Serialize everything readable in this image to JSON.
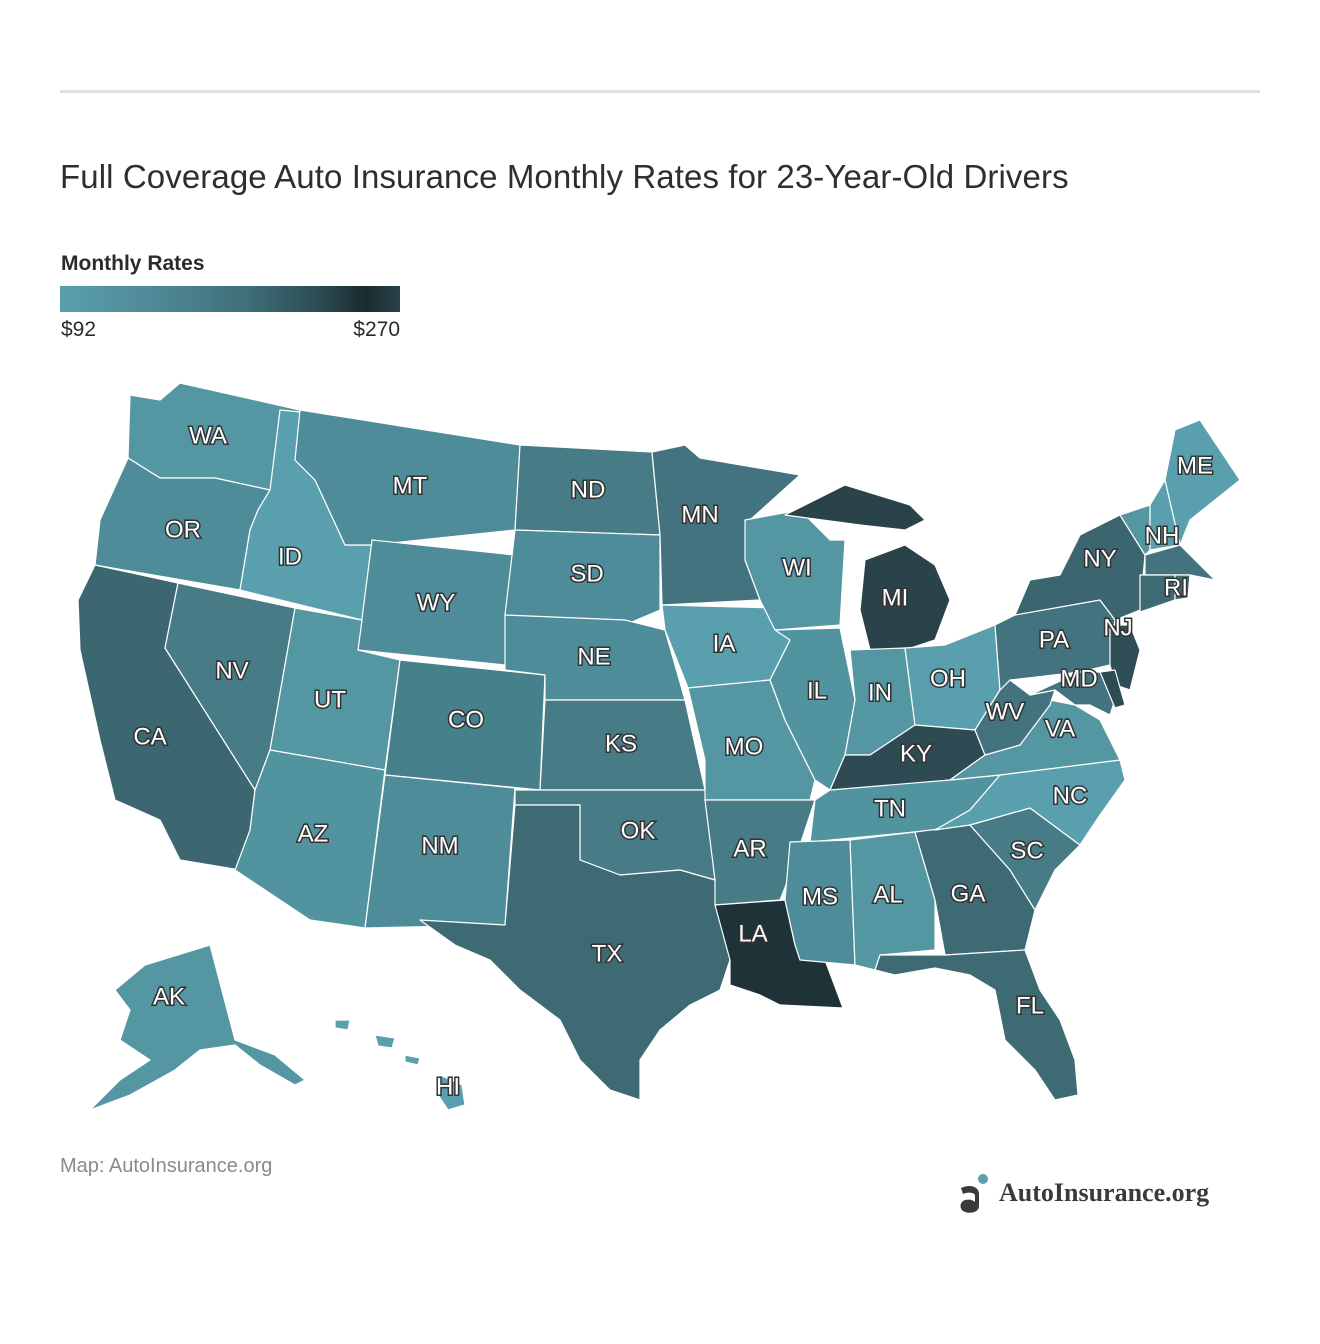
{
  "title": "Full Coverage Auto Insurance Monthly Rates for 23-Year-Old Drivers",
  "legend": {
    "title": "Monthly Rates",
    "min_label": "$92",
    "max_label": "$270",
    "colors": [
      "#5a9fad",
      "#4e8794",
      "#3f6f79",
      "#2d4d55",
      "#1b2a2f",
      "#27414a"
    ]
  },
  "source": "Map: AutoInsurance.org",
  "brand": {
    "name": "AutoInsurance.org"
  },
  "chart_data": {
    "type": "choropleth",
    "scale": {
      "min": 92,
      "max": 270,
      "low_color": "#5a9fad",
      "high_color": "#1b2a2f"
    },
    "states": [
      {
        "code": "WA",
        "color": "#5596a3"
      },
      {
        "code": "OR",
        "color": "#4f8c99"
      },
      {
        "code": "CA",
        "color": "#3c6771"
      },
      {
        "code": "ID",
        "color": "#5a9fad"
      },
      {
        "code": "NV",
        "color": "#477b86"
      },
      {
        "code": "MT",
        "color": "#4f8c99"
      },
      {
        "code": "WY",
        "color": "#4f8c99"
      },
      {
        "code": "UT",
        "color": "#5596a3"
      },
      {
        "code": "AZ",
        "color": "#5293a0"
      },
      {
        "code": "CO",
        "color": "#46808b"
      },
      {
        "code": "NM",
        "color": "#4f8c99"
      },
      {
        "code": "ND",
        "color": "#477b86"
      },
      {
        "code": "SD",
        "color": "#4f8c99"
      },
      {
        "code": "NE",
        "color": "#4f8c99"
      },
      {
        "code": "KS",
        "color": "#477b86"
      },
      {
        "code": "OK",
        "color": "#477b86"
      },
      {
        "code": "TX",
        "color": "#3e6a74"
      },
      {
        "code": "MN",
        "color": "#42737e"
      },
      {
        "code": "IA",
        "color": "#5a9fad"
      },
      {
        "code": "MO",
        "color": "#5596a3"
      },
      {
        "code": "AR",
        "color": "#477b86"
      },
      {
        "code": "LA",
        "color": "#1f3238"
      },
      {
        "code": "WI",
        "color": "#5596a3"
      },
      {
        "code": "IL",
        "color": "#5293a0"
      },
      {
        "code": "MI",
        "color": "#2a4249"
      },
      {
        "code": "IN",
        "color": "#5596a3"
      },
      {
        "code": "OH",
        "color": "#5a9fad"
      },
      {
        "code": "KY",
        "color": "#2e4a52"
      },
      {
        "code": "TN",
        "color": "#5293a0"
      },
      {
        "code": "MS",
        "color": "#4f8c99"
      },
      {
        "code": "AL",
        "color": "#5596a3"
      },
      {
        "code": "GA",
        "color": "#3e6a74"
      },
      {
        "code": "FL",
        "color": "#3e6a74"
      },
      {
        "code": "SC",
        "color": "#477b86"
      },
      {
        "code": "NC",
        "color": "#5a9fad"
      },
      {
        "code": "VA",
        "color": "#5596a3"
      },
      {
        "code": "WV",
        "color": "#42737e"
      },
      {
        "code": "PA",
        "color": "#42737e"
      },
      {
        "code": "NY",
        "color": "#3b656f"
      },
      {
        "code": "NJ",
        "color": "#2f4d55"
      },
      {
        "code": "MD",
        "color": "#42737e"
      },
      {
        "code": "DE",
        "color": "#2e4a52"
      },
      {
        "code": "ME",
        "color": "#5a9fad"
      },
      {
        "code": "NH",
        "color": "#5a9fad"
      },
      {
        "code": "VT",
        "color": "#5596a3"
      },
      {
        "code": "MA",
        "color": "#42737e"
      },
      {
        "code": "RI",
        "color": "#3e6a74"
      },
      {
        "code": "CT",
        "color": "#3e6a74"
      },
      {
        "code": "AK",
        "color": "#5596a3"
      },
      {
        "code": "HI",
        "color": "#5a9fad"
      }
    ]
  }
}
